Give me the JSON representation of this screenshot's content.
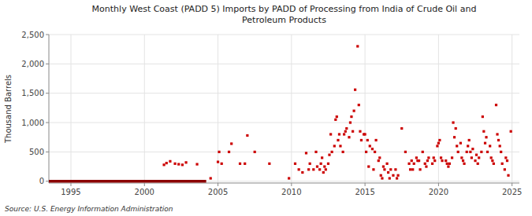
{
  "chart_data": {
    "type": "scatter",
    "title": "Monthly West Coast (PADD 5) Imports by PADD of Processing from India of Crude Oil and\nPetroleum Products",
    "ylabel": "Thousand Barrels",
    "annotations": [
      "Source: U.S. Energy Information Administration"
    ],
    "xlim": [
      1993.5,
      2025.5
    ],
    "ylim": [
      -30,
      2500
    ],
    "xticks": [
      1995,
      2000,
      2005,
      2010,
      2015,
      2020,
      2025
    ],
    "yticks": [
      0,
      {
        "value": 500,
        "label": "500"
      },
      {
        "value": 1000,
        "label": "1,000"
      },
      {
        "value": 1500,
        "label": "1,500"
      },
      {
        "value": 2000,
        "label": "2,000"
      },
      {
        "value": 2500,
        "label": "2,500"
      }
    ],
    "grid": true,
    "series": [
      {
        "type": "line",
        "color": "#8b0000",
        "x": [
          1993.5,
          2004.2
        ],
        "values": [
          0,
          0
        ]
      },
      {
        "type": "scatter",
        "color": "#cc0000",
        "marker": "square",
        "x": [
          2001.33,
          2001.5,
          2001.75,
          2002.08,
          2002.33,
          2002.58,
          2002.83,
          2003.58,
          2004.5,
          2005.0,
          2005.08,
          2005.25,
          2005.75,
          2005.92,
          2006.5,
          2006.83,
          2007.0,
          2007.5,
          2008.5,
          2009.83,
          2010.25,
          2010.5,
          2010.75,
          2011.0,
          2011.17,
          2011.25,
          2011.5,
          2011.67,
          2011.75,
          2011.92,
          2012.0,
          2012.08,
          2012.17,
          2012.25,
          2012.33,
          2012.5,
          2012.58,
          2012.67,
          2012.75,
          2012.92,
          2013.0,
          2013.08,
          2013.17,
          2013.25,
          2013.33,
          2013.5,
          2013.58,
          2013.67,
          2013.75,
          2013.92,
          2014.0,
          2014.08,
          2014.17,
          2014.25,
          2014.33,
          2014.5,
          2014.58,
          2014.67,
          2014.75,
          2014.92,
          2015.0,
          2015.08,
          2015.17,
          2015.25,
          2015.33,
          2015.5,
          2015.58,
          2015.67,
          2015.75,
          2015.92,
          2016.0,
          2016.08,
          2016.17,
          2016.25,
          2016.33,
          2016.5,
          2016.58,
          2016.67,
          2016.75,
          2016.92,
          2017.08,
          2017.17,
          2017.25,
          2017.5,
          2017.75,
          2018.0,
          2018.08,
          2018.17,
          2018.25,
          2018.33,
          2018.5,
          2018.58,
          2018.67,
          2018.75,
          2018.92,
          2019.08,
          2019.17,
          2019.25,
          2019.33,
          2019.58,
          2019.67,
          2019.75,
          2019.92,
          2020.0,
          2020.08,
          2020.17,
          2020.25,
          2020.5,
          2020.58,
          2020.67,
          2020.75,
          2020.92,
          2021.0,
          2021.08,
          2021.17,
          2021.25,
          2021.33,
          2021.5,
          2021.58,
          2021.67,
          2021.75,
          2021.92,
          2022.0,
          2022.08,
          2022.17,
          2022.25,
          2022.33,
          2022.5,
          2022.58,
          2022.67,
          2022.75,
          2022.92,
          2023.0,
          2023.08,
          2023.17,
          2023.25,
          2023.33,
          2023.5,
          2023.58,
          2023.67,
          2023.75,
          2023.92,
          2024.0,
          2024.08,
          2024.17,
          2024.25,
          2024.33,
          2024.5,
          2024.58,
          2024.67,
          2024.75,
          2024.92
        ],
        "values": [
          280,
          310,
          340,
          300,
          290,
          280,
          320,
          290,
          50,
          330,
          500,
          300,
          500,
          640,
          300,
          300,
          780,
          500,
          300,
          50,
          300,
          200,
          150,
          480,
          200,
          300,
          200,
          500,
          250,
          200,
          300,
          400,
          150,
          250,
          200,
          300,
          450,
          800,
          500,
          600,
          1050,
          1100,
          700,
          800,
          600,
          500,
          800,
          850,
          900,
          750,
          1000,
          1100,
          850,
          1200,
          1560,
          2300,
          1300,
          850,
          700,
          800,
          800,
          500,
          700,
          250,
          600,
          550,
          200,
          500,
          700,
          350,
          400,
          100,
          50,
          250,
          200,
          300,
          150,
          50,
          200,
          100,
          200,
          50,
          100,
          900,
          500,
          300,
          200,
          350,
          200,
          300,
          400,
          350,
          350,
          200,
          500,
          300,
          250,
          350,
          400,
          300,
          400,
          350,
          600,
          650,
          700,
          400,
          350,
          350,
          300,
          250,
          300,
          400,
          1000,
          750,
          900,
          600,
          500,
          650,
          400,
          350,
          300,
          500,
          600,
          700,
          500,
          400,
          550,
          350,
          450,
          300,
          400,
          500,
          1100,
          850,
          650,
          750,
          500,
          600,
          400,
          350,
          300,
          1300,
          800,
          700,
          600,
          500,
          300,
          200,
          400,
          350,
          100,
          850
        ]
      }
    ]
  }
}
